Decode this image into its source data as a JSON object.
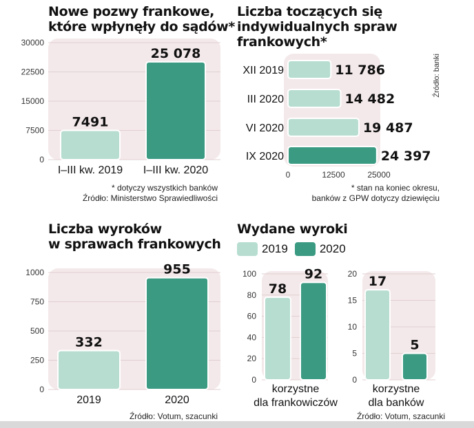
{
  "colors": {
    "c2019": "#b6ddd0",
    "c2020": "#3a9a82",
    "panel": "#f4e9ea",
    "grid": "#e0cfd2"
  },
  "panel1": {
    "title_line1": "Nowe pozwy frankowe,",
    "title_line2": "które wpłynęły do sądów*",
    "note_line1": "* dotyczy wszystkich banków",
    "note_line2": "Źródło: Ministerstwo Sprawiedliwości"
  },
  "panel2": {
    "title_line1": "Liczba toczących się",
    "title_line2": "indywidualnych spraw",
    "title_line3": "frankowych*",
    "note_line1": "* stan na koniec okresu,",
    "note_line2": "banków z GPW dotyczy dziewięciu",
    "source_vertical": "Źródło: banki"
  },
  "panel3": {
    "title_line1": "Liczba wyroków",
    "title_line2": "w sprawach frankowych",
    "note": "Źródło: Votum, szacunki"
  },
  "panel4": {
    "title": "Wydane wyroki",
    "legend_2019": "2019",
    "legend_2020": "2020",
    "note": "Źródło: Votum, szacunki"
  },
  "chart_data": [
    {
      "type": "bar",
      "title": "Nowe pozwy frankowe, które wpłynęły do sądów*",
      "categories": [
        "I–III kw. 2019",
        "I–III kw. 2020"
      ],
      "values": [
        7491,
        25078
      ],
      "value_labels": [
        "7491",
        "25 078"
      ],
      "ylim": [
        0,
        30000
      ],
      "yticks": [
        "30000",
        "22500",
        "15000",
        "7500",
        "0"
      ],
      "grid": true
    },
    {
      "type": "bar",
      "orientation": "horizontal",
      "title": "Liczba toczących się indywidualnych spraw frankowych*",
      "categories": [
        "XII 2019",
        "III 2020",
        "VI 2020",
        "IX 2020"
      ],
      "values": [
        11786,
        14482,
        19487,
        24397
      ],
      "value_labels": [
        "11 786",
        "14 482",
        "19 487",
        "24 397"
      ],
      "xlim": [
        0,
        25000
      ],
      "xticks": [
        "0",
        "12500",
        "25000"
      ]
    },
    {
      "type": "bar",
      "title": "Liczba wyroków w sprawach frankowych",
      "categories": [
        "2019",
        "2020"
      ],
      "values": [
        332,
        955
      ],
      "value_labels": [
        "332",
        "955"
      ],
      "ylim": [
        0,
        1000
      ],
      "yticks": [
        "1000",
        "750",
        "500",
        "250",
        "0"
      ],
      "grid": true
    },
    {
      "type": "bar",
      "title": "Wydane wyroki",
      "categories": [
        "korzystne dla frankowiczów"
      ],
      "series": [
        {
          "name": "2019",
          "values": [
            78
          ]
        },
        {
          "name": "2020",
          "values": [
            92
          ]
        }
      ],
      "ylim": [
        0,
        100
      ],
      "yticks": [
        "100",
        "80",
        "60",
        "40",
        "20",
        "0"
      ],
      "cat_line1": "korzystne",
      "cat_line2": "dla frankowiczów"
    },
    {
      "type": "bar",
      "title": "Wydane wyroki",
      "categories": [
        "korzystne dla banków"
      ],
      "series": [
        {
          "name": "2019",
          "values": [
            17
          ]
        },
        {
          "name": "2020",
          "values": [
            5
          ]
        }
      ],
      "ylim": [
        0,
        20
      ],
      "yticks": [
        "20",
        "15",
        "10",
        "5",
        "0"
      ],
      "cat_line1": "korzystne",
      "cat_line2": "dla banków"
    }
  ]
}
